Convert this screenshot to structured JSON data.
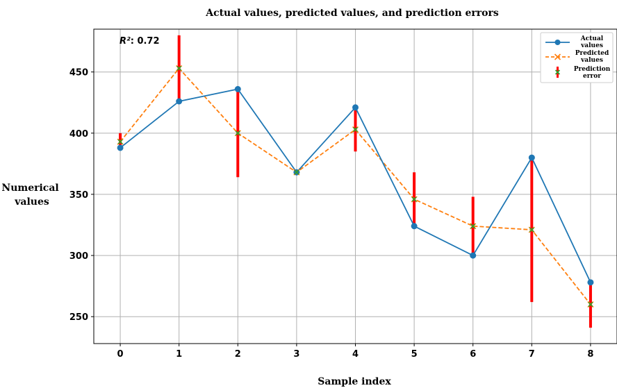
{
  "chart_data": {
    "type": "line",
    "title": "Actual values, predicted values, and prediction errors",
    "xlabel": "Sample index",
    "ylabel_lines": [
      "Numerical",
      "values"
    ],
    "x": [
      0,
      1,
      2,
      3,
      4,
      5,
      6,
      7,
      8
    ],
    "x_ticks": [
      0,
      1,
      2,
      3,
      4,
      5,
      6,
      7,
      8
    ],
    "y_ticks": [
      250,
      300,
      350,
      400,
      450
    ],
    "xlim": [
      -0.45,
      8.45
    ],
    "ylim": [
      228,
      485
    ],
    "grid": true,
    "legend_position": "top-right",
    "annotation": {
      "prefix": "R²",
      "text": ": 0.72"
    },
    "series": [
      {
        "name_lines": [
          "Actual",
          "values"
        ],
        "values": [
          388,
          426,
          436,
          368,
          421,
          324,
          300,
          380,
          278
        ],
        "color": "#1f77b4",
        "style": "solid",
        "marker": "circle"
      },
      {
        "name_lines": [
          "Predicted",
          "values"
        ],
        "values": [
          393,
          453,
          400,
          368,
          403,
          346,
          324,
          321,
          260
        ],
        "color": "#ff7f0e",
        "style": "dashed",
        "marker": "x"
      }
    ],
    "error_series": {
      "name_lines": [
        "Prediction",
        "error"
      ],
      "color": "#ff0000",
      "marker_color": "#2ca02c",
      "lower": [
        388,
        426,
        364,
        367,
        385,
        324,
        300,
        262,
        241
      ],
      "upper": [
        400,
        480,
        436,
        369,
        421,
        368,
        348,
        380,
        279
      ]
    }
  }
}
